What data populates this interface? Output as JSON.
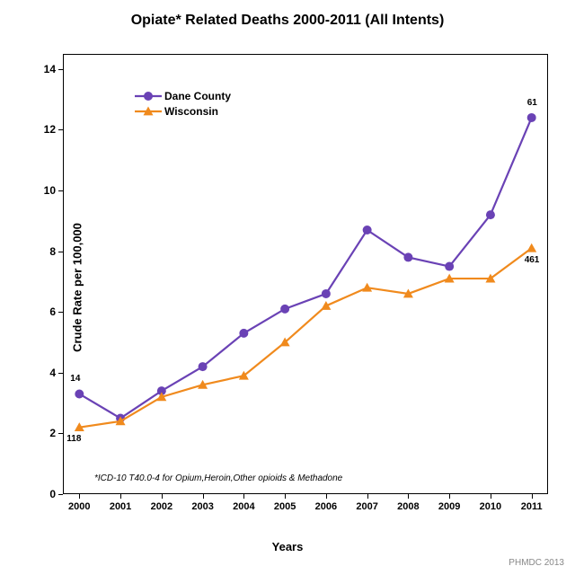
{
  "chart": {
    "type": "line",
    "title": "Opiate* Related Deaths 2000-2011 (All Intents)",
    "title_fontsize": 16,
    "xlabel": "Years",
    "ylabel": "Crude Rate per 100,000",
    "axis_label_fontsize": 13,
    "tick_fontsize": 12,
    "xticks": [
      "2000",
      "2001",
      "2002",
      "2003",
      "2004",
      "2005",
      "2006",
      "2007",
      "2008",
      "2009",
      "2010",
      "2011"
    ],
    "xlim": [
      -0.4,
      11.4
    ],
    "yticks": [
      0,
      2,
      4,
      6,
      8,
      10,
      12,
      14
    ],
    "ylim": [
      0,
      14.5
    ],
    "background_color": "#ffffff",
    "border_color": "#000000",
    "footnote": "*ICD-10 T40.0-4 for Opium,Heroin,Other opioids & Methadone",
    "source": "PHMDC 2013",
    "legend_position": "top-left",
    "series": [
      {
        "name": "Dane County",
        "color": "#6a42b5",
        "marker": "circle",
        "marker_size": 5,
        "line_width": 2.2,
        "values": [
          3.3,
          2.5,
          3.4,
          4.2,
          5.3,
          6.1,
          6.6,
          8.7,
          7.8,
          7.5,
          9.2,
          12.4
        ],
        "start_label": "14",
        "end_label": "61"
      },
      {
        "name": "Wisconsin",
        "color": "#f08a1d",
        "marker": "triangle",
        "marker_size": 5.5,
        "line_width": 2.2,
        "values": [
          2.2,
          2.4,
          3.2,
          3.6,
          3.9,
          5.0,
          6.2,
          6.8,
          6.6,
          7.1,
          7.1,
          8.1
        ],
        "start_label": "118",
        "end_label": "461"
      }
    ]
  }
}
